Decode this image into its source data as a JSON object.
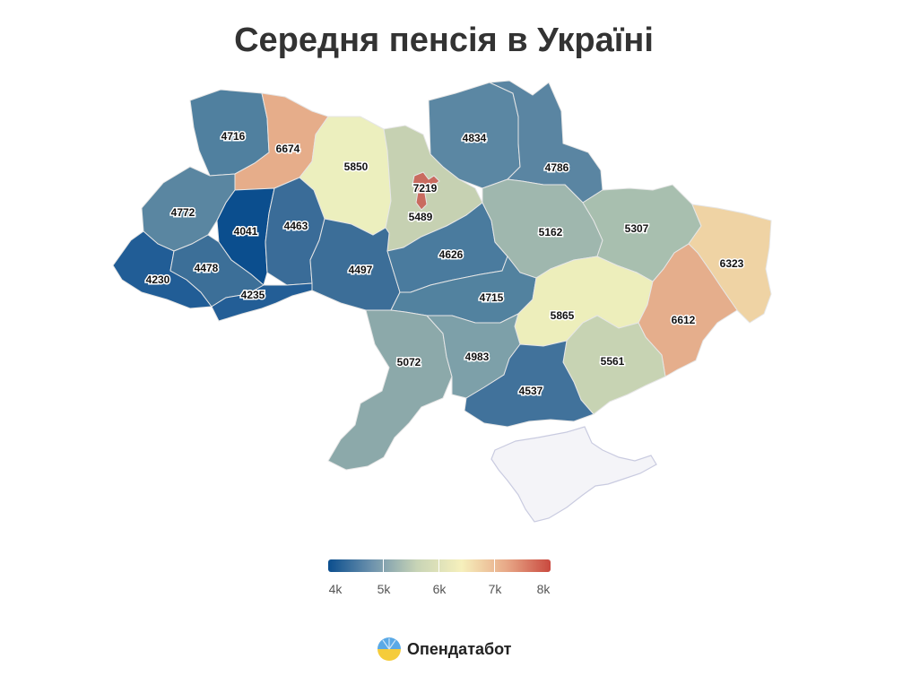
{
  "title": "Середня пенсія в Україні",
  "map": {
    "regions": [
      {
        "id": "volyn",
        "value": "4716",
        "color": "#50809f"
      },
      {
        "id": "rivne",
        "value": "6674",
        "color": "#e6ad8a"
      },
      {
        "id": "zhytomyr",
        "value": "5850",
        "color": "#ecefbe"
      },
      {
        "id": "kyiv-oblast",
        "value": "5489",
        "color": "#c6d1b2"
      },
      {
        "id": "kyiv-city",
        "value": "7219",
        "color": "#c96b5f"
      },
      {
        "id": "chernihiv",
        "value": "4834",
        "color": "#5b87a3"
      },
      {
        "id": "sumy",
        "value": "4786",
        "color": "#5a85a2"
      },
      {
        "id": "lviv",
        "value": "4772",
        "color": "#5a86a1"
      },
      {
        "id": "ternopil",
        "value": "4041",
        "color": "#0b4e8e"
      },
      {
        "id": "khmelnytskyi",
        "value": "4463",
        "color": "#3a6c98"
      },
      {
        "id": "vinnytsia",
        "value": "4497",
        "color": "#3c6e98"
      },
      {
        "id": "cherkasy",
        "value": "4626",
        "color": "#4a7b9e"
      },
      {
        "id": "poltava",
        "value": "5162",
        "color": "#9fb7ae"
      },
      {
        "id": "kharkiv",
        "value": "5307",
        "color": "#a8bfaf"
      },
      {
        "id": "luhansk",
        "value": "6323",
        "color": "#efd3a4"
      },
      {
        "id": "zakarpattia",
        "value": "4230",
        "color": "#215d96"
      },
      {
        "id": "ivano-frankivsk",
        "value": "4478",
        "color": "#3c6f98"
      },
      {
        "id": "chernivtsi",
        "value": "4235",
        "color": "#235e96"
      },
      {
        "id": "kirovohrad",
        "value": "4715",
        "color": "#52829f"
      },
      {
        "id": "dnipropetrovsk",
        "value": "5865",
        "color": "#edeebb"
      },
      {
        "id": "donetsk",
        "value": "6612",
        "color": "#e5ae8c"
      },
      {
        "id": "odesa",
        "value": "5072",
        "color": "#8ca9aa"
      },
      {
        "id": "mykolaiv",
        "value": "4983",
        "color": "#7da0a9"
      },
      {
        "id": "zaporizhzhia",
        "value": "5561",
        "color": "#c7d3b3"
      },
      {
        "id": "kherson",
        "value": "4537",
        "color": "#41729b"
      }
    ],
    "crimea_color": "#f4f4f8"
  },
  "legend": {
    "gradient": [
      "#0b4e8e",
      "#6e93ad",
      "#c8d4b6",
      "#f6f0bc",
      "#e8a988",
      "#c9493f"
    ],
    "labels": [
      "4k",
      "5k",
      "6k",
      "7k",
      "8k"
    ]
  },
  "brand": {
    "name": "Опендатабот"
  }
}
